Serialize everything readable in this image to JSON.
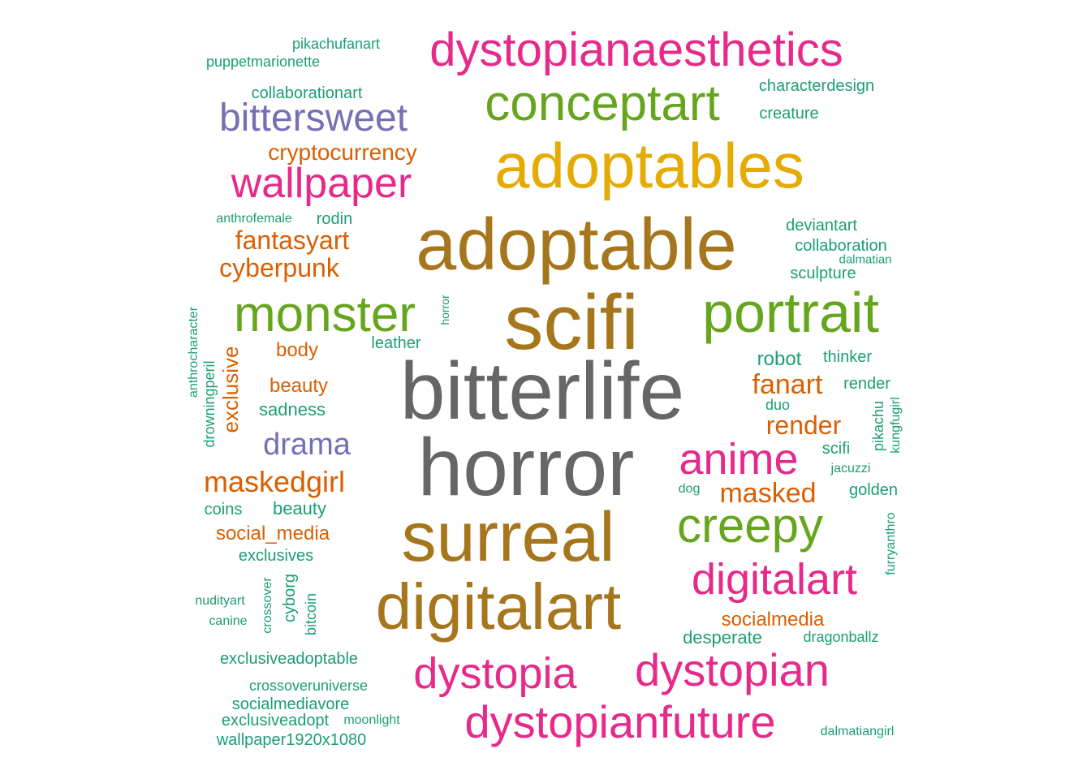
{
  "colors": {
    "teal": "#1b9e77",
    "orange": "#d95f02",
    "purple": "#7570b3",
    "pink": "#e7298a",
    "green": "#66a61e",
    "gold": "#e6ab02",
    "brown": "#a6761d",
    "gray": "#666666"
  },
  "words": [
    {
      "text": "bitterlife",
      "color": "gray"
    },
    {
      "text": "horror",
      "color": "gray"
    },
    {
      "text": "scifi",
      "color": "brown"
    },
    {
      "text": "adoptable",
      "color": "brown"
    },
    {
      "text": "surreal",
      "color": "brown"
    },
    {
      "text": "digitalart",
      "color": "brown"
    },
    {
      "text": "adoptables",
      "color": "gold"
    },
    {
      "text": "portrait",
      "color": "green"
    },
    {
      "text": "conceptart",
      "color": "green"
    },
    {
      "text": "monster",
      "color": "green"
    },
    {
      "text": "creepy",
      "color": "green"
    },
    {
      "text": "dystopianaesthetics",
      "color": "pink"
    },
    {
      "text": "anime",
      "color": "pink"
    },
    {
      "text": "dystopian",
      "color": "pink"
    },
    {
      "text": "dystopianfuture",
      "color": "pink"
    },
    {
      "text": "dystopia",
      "color": "pink"
    },
    {
      "text": "digitalart",
      "color": "pink"
    },
    {
      "text": "wallpaper",
      "color": "pink"
    },
    {
      "text": "bittersweet",
      "color": "purple"
    },
    {
      "text": "drama",
      "color": "purple"
    },
    {
      "text": "cryptocurrency",
      "color": "orange"
    },
    {
      "text": "fantasyart",
      "color": "orange"
    },
    {
      "text": "cyberpunk",
      "color": "orange"
    },
    {
      "text": "maskedgirl",
      "color": "orange"
    },
    {
      "text": "masked",
      "color": "orange"
    },
    {
      "text": "fanart",
      "color": "orange"
    },
    {
      "text": "render",
      "color": "orange"
    },
    {
      "text": "exclusive",
      "color": "orange"
    },
    {
      "text": "body",
      "color": "orange"
    },
    {
      "text": "beauty",
      "color": "orange"
    },
    {
      "text": "social_media",
      "color": "orange"
    },
    {
      "text": "socialmedia",
      "color": "orange"
    },
    {
      "text": "pikachufanart",
      "color": "teal"
    },
    {
      "text": "puppetmarionette",
      "color": "teal"
    },
    {
      "text": "collaborationart",
      "color": "teal"
    },
    {
      "text": "characterdesign",
      "color": "teal"
    },
    {
      "text": "creature",
      "color": "teal"
    },
    {
      "text": "anthrofemale",
      "color": "teal"
    },
    {
      "text": "rodin",
      "color": "teal"
    },
    {
      "text": "deviantart",
      "color": "teal"
    },
    {
      "text": "collaboration",
      "color": "teal"
    },
    {
      "text": "dalmatian",
      "color": "teal"
    },
    {
      "text": "sculpture",
      "color": "teal"
    },
    {
      "text": "anthrocharacter",
      "color": "teal"
    },
    {
      "text": "drowningperil",
      "color": "teal"
    },
    {
      "text": "horror",
      "color": "teal"
    },
    {
      "text": "leather",
      "color": "teal"
    },
    {
      "text": "robot",
      "color": "teal"
    },
    {
      "text": "thinker",
      "color": "teal"
    },
    {
      "text": "render",
      "color": "teal"
    },
    {
      "text": "duo",
      "color": "teal"
    },
    {
      "text": "pikachu",
      "color": "teal"
    },
    {
      "text": "kungfugirl",
      "color": "teal"
    },
    {
      "text": "scifi",
      "color": "teal"
    },
    {
      "text": "jacuzzi",
      "color": "teal"
    },
    {
      "text": "dog",
      "color": "teal"
    },
    {
      "text": "golden",
      "color": "teal"
    },
    {
      "text": "sadness",
      "color": "teal"
    },
    {
      "text": "coins",
      "color": "teal"
    },
    {
      "text": "beauty",
      "color": "teal"
    },
    {
      "text": "exclusives",
      "color": "teal"
    },
    {
      "text": "furryanthro",
      "color": "teal"
    },
    {
      "text": "nudityart",
      "color": "teal"
    },
    {
      "text": "canine",
      "color": "teal"
    },
    {
      "text": "crossover",
      "color": "teal"
    },
    {
      "text": "cyborg",
      "color": "teal"
    },
    {
      "text": "bitcoin",
      "color": "teal"
    },
    {
      "text": "desperate",
      "color": "teal"
    },
    {
      "text": "dragonballz",
      "color": "teal"
    },
    {
      "text": "exclusiveadoptable",
      "color": "teal"
    },
    {
      "text": "crossoveruniverse",
      "color": "teal"
    },
    {
      "text": "socialmediavore",
      "color": "teal"
    },
    {
      "text": "exclusiveadopt",
      "color": "teal"
    },
    {
      "text": "moonlight",
      "color": "teal"
    },
    {
      "text": "wallpaper1920x1080",
      "color": "teal"
    },
    {
      "text": "dalmatiangirl",
      "color": "teal"
    }
  ]
}
